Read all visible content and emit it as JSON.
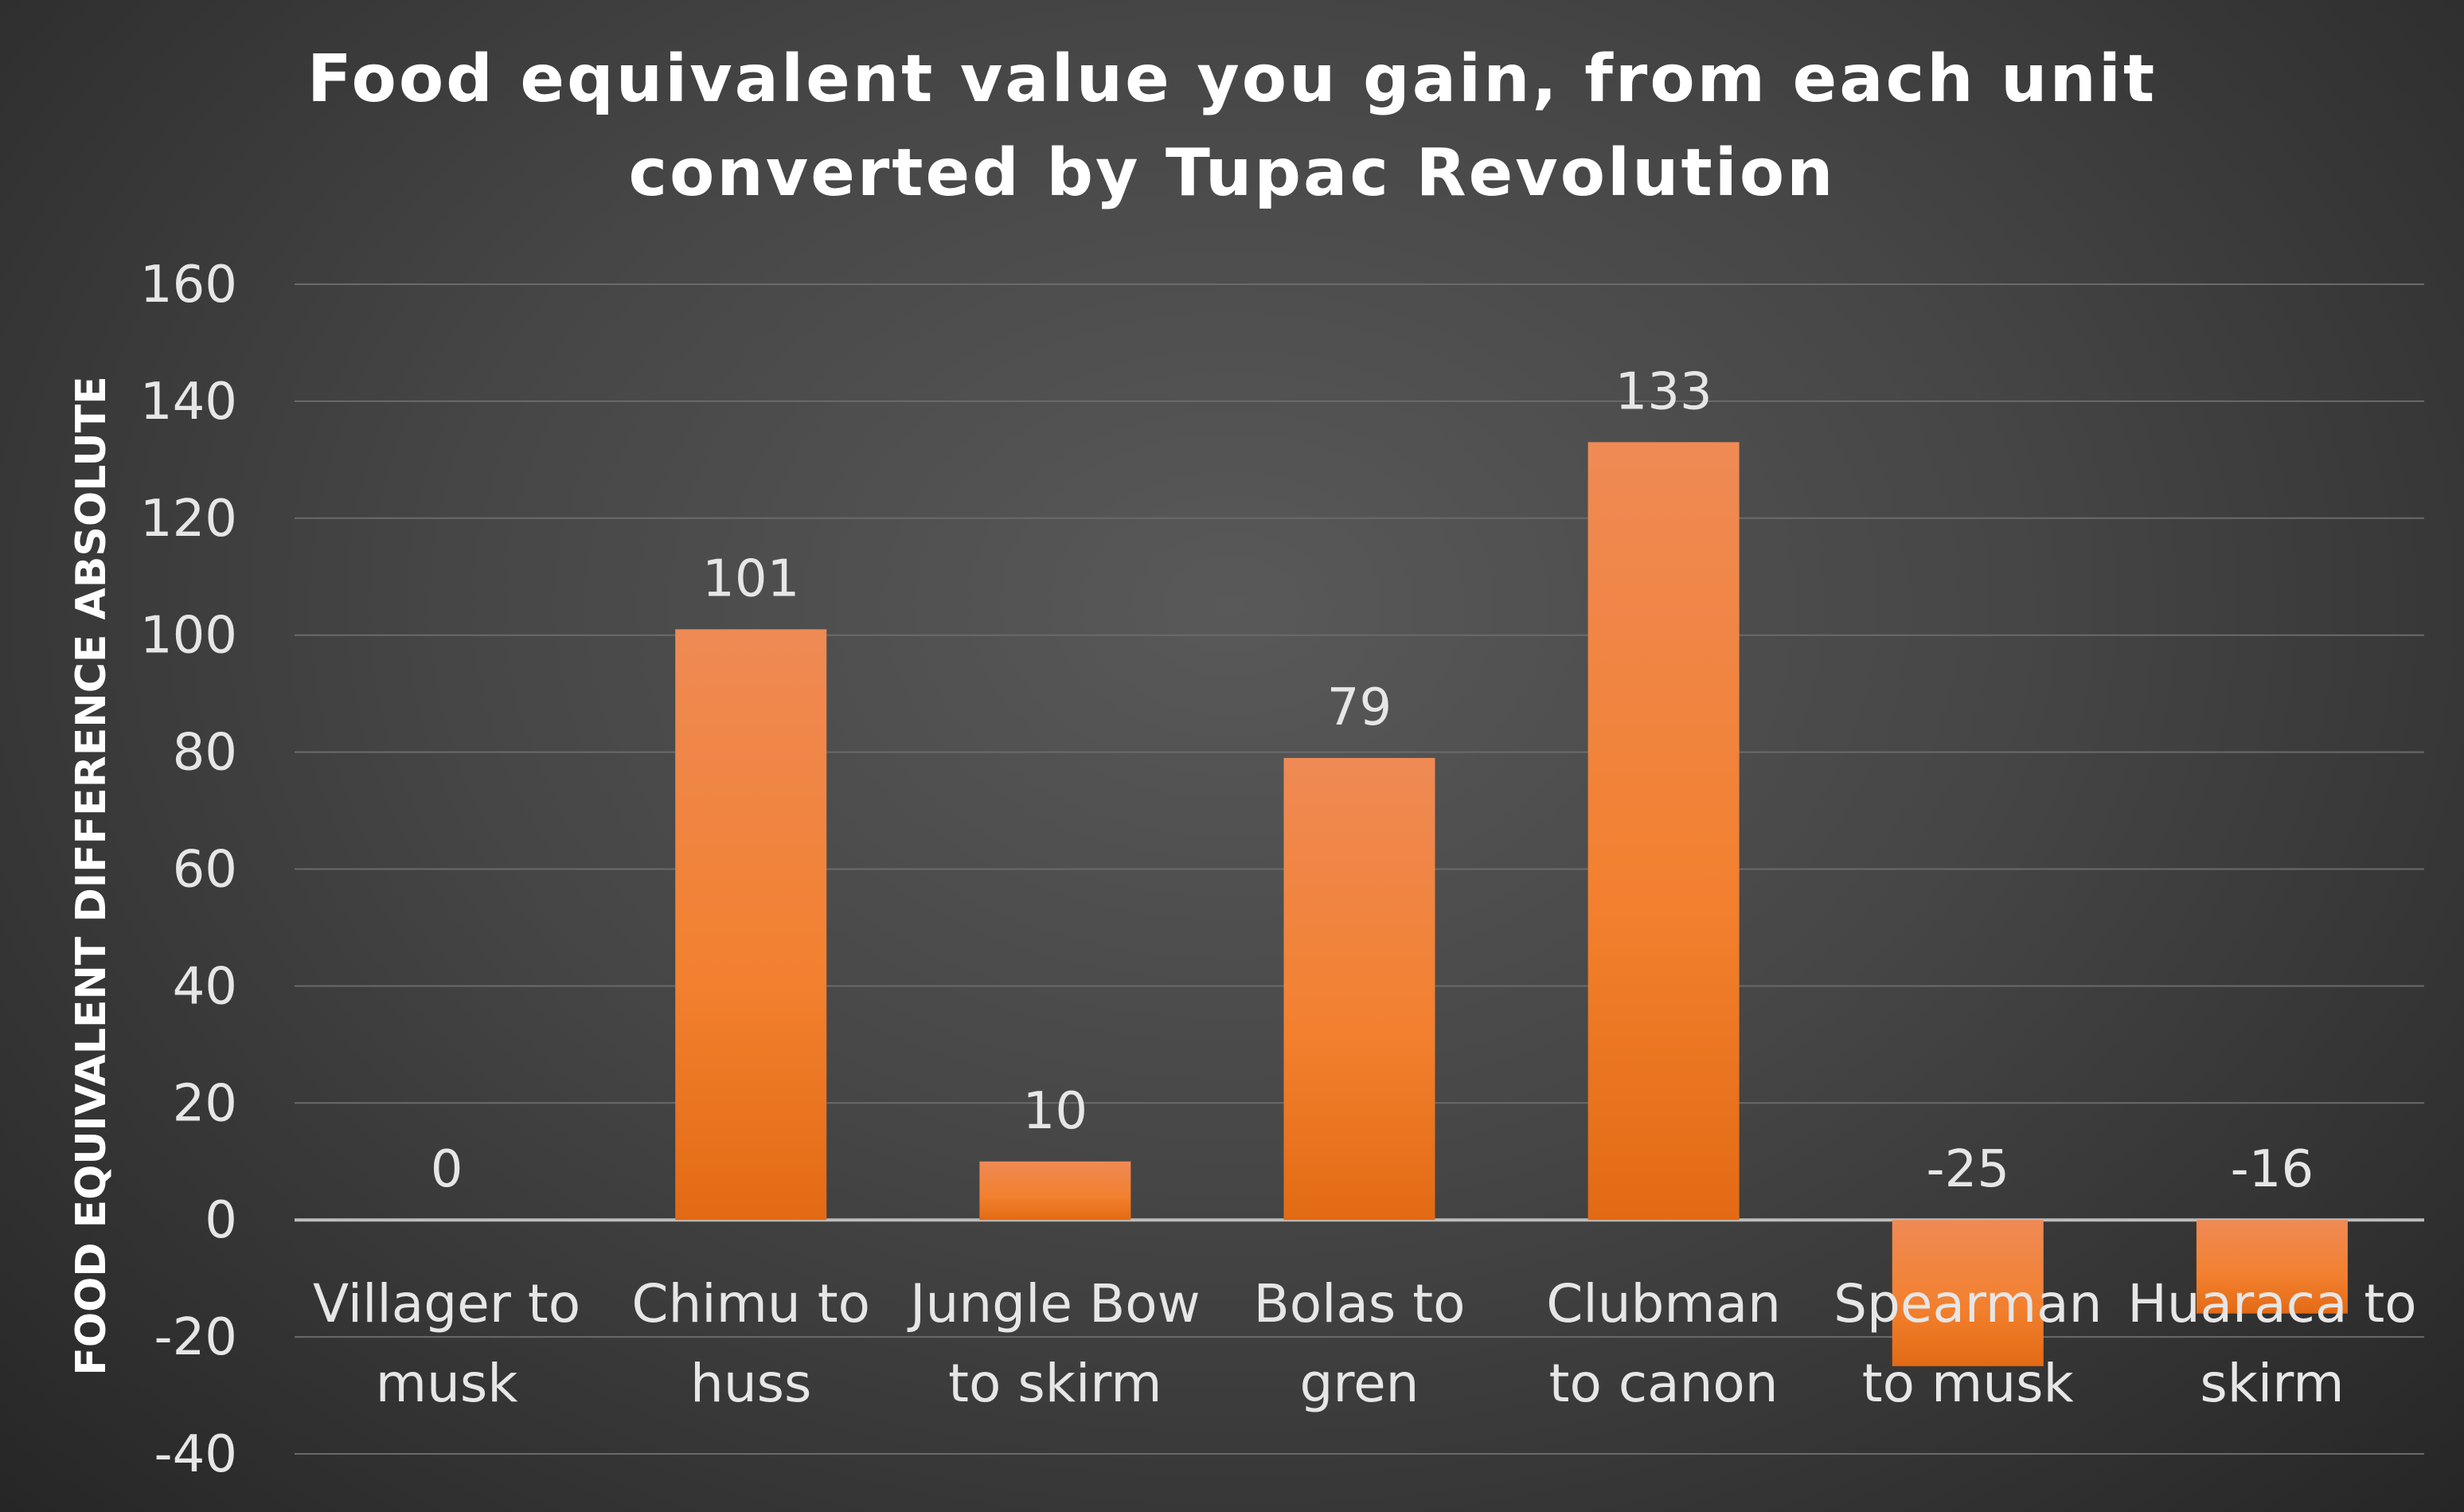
{
  "chart_data": {
    "type": "bar",
    "title_lines": [
      "Food equivalent value you gain, from each unit",
      "converted by Tupac Revolution"
    ],
    "ylabel": "FOOD EQUIVALENT DIFFERENCE ABSOLUTE",
    "xlabel": "",
    "categories": [
      [
        "Villager to",
        "musk"
      ],
      [
        "Chimu to",
        "huss"
      ],
      [
        "Jungle Bow",
        "to skirm"
      ],
      [
        "Bolas to",
        "gren"
      ],
      [
        "Clubman",
        "to canon"
      ],
      [
        "Spearman",
        "to musk"
      ],
      [
        "Huaraca to",
        "skirm"
      ]
    ],
    "values": [
      0,
      101,
      10,
      79,
      133,
      -25,
      -16
    ],
    "data_labels": [
      "0",
      "101",
      "10",
      "79",
      "133",
      "-25",
      "-16"
    ],
    "ylim": [
      -40,
      160
    ],
    "yticks": [
      160,
      140,
      120,
      100,
      80,
      60,
      40,
      20,
      0,
      -20,
      -40
    ],
    "grid": true,
    "legend": "none",
    "bar_color": "#f07f2e"
  }
}
